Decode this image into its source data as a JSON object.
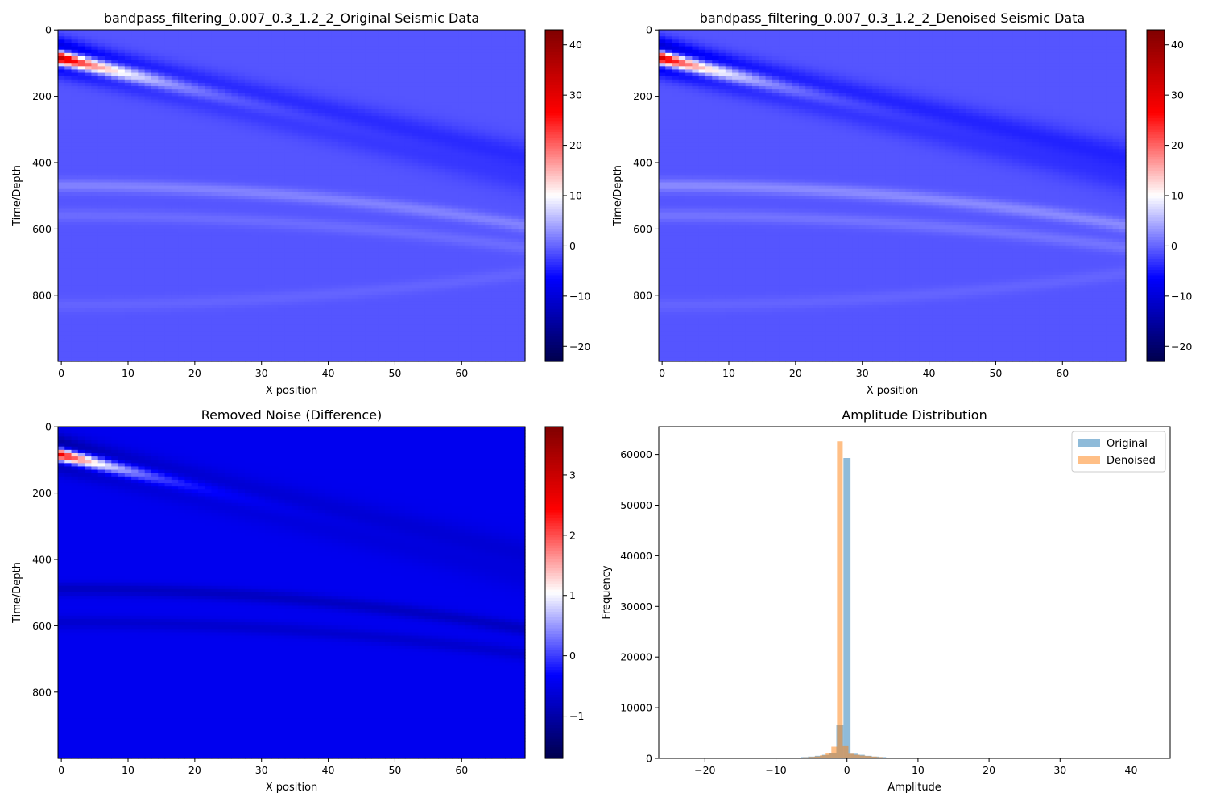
{
  "chart_data": [
    {
      "id": "original",
      "type": "heatmap",
      "title": "bandpass_filtering_0.007_0.3_1.2_2_Original Seismic Data",
      "xlabel": "X position",
      "ylabel": "Time/Depth",
      "xlim": [
        -0.5,
        69.5
      ],
      "ylim": [
        999.5,
        -0.5
      ],
      "xticks": [
        0,
        10,
        20,
        30,
        40,
        50,
        60
      ],
      "yticks": [
        0,
        200,
        400,
        600,
        800
      ],
      "colormap": "seismic",
      "colorbar": {
        "vmin": -23,
        "vmax": 43,
        "ticks": [
          -20,
          -10,
          0,
          10,
          20,
          30,
          40
        ]
      },
      "features": [
        {
          "kind": "dipping-event",
          "x": [
            0,
            69
          ],
          "t": [
            85,
            415
          ],
          "peak": 41,
          "side": -12
        },
        {
          "kind": "hyperbola",
          "t0": 470,
          "curvature": 0.025,
          "amp": 3
        },
        {
          "kind": "hyperbola",
          "t0": 560,
          "curvature": 0.02,
          "amp": 1.5
        },
        {
          "kind": "hyperbola",
          "t0": 830,
          "curvature": -0.02,
          "amp": 1
        }
      ],
      "background_value": -1
    },
    {
      "id": "denoised",
      "type": "heatmap",
      "title": "bandpass_filtering_0.007_0.3_1.2_2_Denoised Seismic Data",
      "xlabel": "X position",
      "ylabel": "Time/Depth",
      "xlim": [
        -0.5,
        69.5
      ],
      "ylim": [
        999.5,
        -0.5
      ],
      "xticks": [
        0,
        10,
        20,
        30,
        40,
        50,
        60
      ],
      "yticks": [
        0,
        200,
        400,
        600,
        800
      ],
      "colormap": "seismic",
      "colorbar": {
        "vmin": -23,
        "vmax": 43,
        "ticks": [
          -20,
          -10,
          0,
          10,
          20,
          30,
          40
        ]
      },
      "features": [
        {
          "kind": "dipping-event",
          "x": [
            0,
            69
          ],
          "t": [
            85,
            415
          ],
          "peak": 40,
          "side": -14
        },
        {
          "kind": "hyperbola",
          "t0": 470,
          "curvature": 0.025,
          "amp": 3.5
        },
        {
          "kind": "hyperbola",
          "t0": 560,
          "curvature": 0.02,
          "amp": 2
        },
        {
          "kind": "hyperbola",
          "t0": 830,
          "curvature": -0.02,
          "amp": 1
        }
      ],
      "background_value": -1
    },
    {
      "id": "difference",
      "type": "heatmap",
      "title": "Removed Noise (Difference)",
      "xlabel": "X position",
      "ylabel": "Time/Depth",
      "xlim": [
        -0.5,
        69.5
      ],
      "ylim": [
        999.5,
        -0.5
      ],
      "xticks": [
        0,
        10,
        20,
        30,
        40,
        50,
        60
      ],
      "yticks": [
        0,
        200,
        400,
        600,
        800
      ],
      "colormap": "seismic",
      "colorbar": {
        "vmin": -1.7,
        "vmax": 3.8,
        "ticks": [
          -1,
          0,
          1,
          2,
          3
        ]
      },
      "features": [
        {
          "kind": "dipping-event",
          "x": [
            0,
            69
          ],
          "t": [
            85,
            415
          ],
          "peak": 3.5,
          "side": -0.9
        },
        {
          "kind": "hyperbola",
          "t0": 490,
          "curvature": 0.025,
          "amp": -0.35
        },
        {
          "kind": "hyperbola",
          "t0": 590,
          "curvature": 0.02,
          "amp": -0.25
        }
      ],
      "background_value": -0.45
    },
    {
      "id": "histogram",
      "type": "histogram",
      "title": "Amplitude Distribution",
      "xlabel": "Amplitude",
      "ylabel": "Frequency",
      "xlim": [
        -26.5,
        45.5
      ],
      "ylim": [
        0,
        65500
      ],
      "xticks": [
        -20,
        -10,
        0,
        10,
        20,
        30,
        40
      ],
      "yticks": [
        0,
        10000,
        20000,
        30000,
        40000,
        50000,
        60000
      ],
      "legend": "top-right",
      "series": [
        {
          "name": "Original",
          "color": "#1f77b4",
          "bins": [
            [
              -8,
              100
            ],
            [
              -7,
              150
            ],
            [
              -6,
              250
            ],
            [
              -5,
              350
            ],
            [
              -4,
              500
            ],
            [
              -3,
              700
            ],
            [
              -2,
              1100
            ],
            [
              -1,
              6600
            ],
            [
              0,
              59300
            ],
            [
              1,
              900
            ],
            [
              2,
              700
            ],
            [
              3,
              500
            ],
            [
              4,
              350
            ],
            [
              5,
              250
            ],
            [
              6,
              150
            ],
            [
              7,
              100
            ],
            [
              8,
              80
            ],
            [
              9,
              60
            ],
            [
              10,
              40
            ]
          ]
        },
        {
          "name": "Denoised",
          "color": "#ff7f0e",
          "bins": [
            [
              -7.4,
              80
            ],
            [
              -6.6,
              120
            ],
            [
              -5.8,
              200
            ],
            [
              -5,
              280
            ],
            [
              -4.2,
              380
            ],
            [
              -3.4,
              600
            ],
            [
              -2.6,
              1100
            ],
            [
              -1.8,
              2300
            ],
            [
              -1,
              62600
            ],
            [
              -0.2,
              2400
            ],
            [
              0.6,
              900
            ],
            [
              1.4,
              700
            ],
            [
              2.2,
              550
            ],
            [
              3,
              450
            ],
            [
              3.8,
              350
            ],
            [
              4.6,
              250
            ],
            [
              5.4,
              150
            ],
            [
              6.2,
              100
            ],
            [
              7,
              80
            ],
            [
              7.8,
              60
            ]
          ],
          "bin_width": 0.8
        }
      ],
      "bin_width": 1.0
    }
  ]
}
